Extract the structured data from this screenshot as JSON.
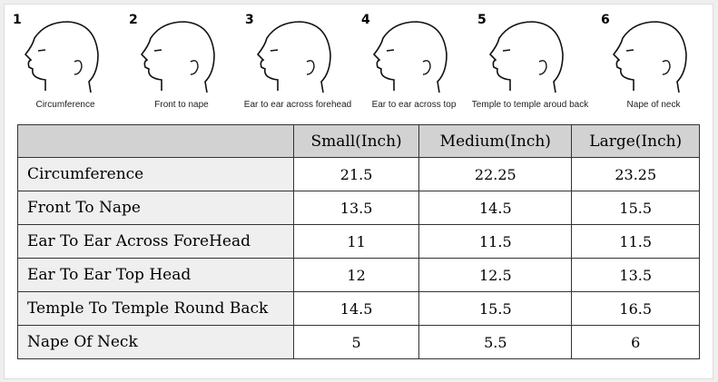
{
  "figures": [
    {
      "number": "1",
      "caption": "Circumference"
    },
    {
      "number": "2",
      "caption": "Front to nape"
    },
    {
      "number": "3",
      "caption": "Ear to ear across forehead"
    },
    {
      "number": "4",
      "caption": "Ear to ear across top"
    },
    {
      "number": "5",
      "caption": "Temple to temple aroud back"
    },
    {
      "number": "6",
      "caption": "Nape of neck"
    }
  ],
  "table": {
    "headers": [
      "",
      "Small(Inch)",
      "Medium(Inch)",
      "Large(Inch)"
    ],
    "rows": [
      [
        "Circumference",
        "21.5",
        "22.25",
        "23.25"
      ],
      [
        "Front To Nape",
        "13.5",
        "14.5",
        "15.5"
      ],
      [
        "Ear To Ear Across ForeHead",
        "11",
        "11.5",
        "11.5"
      ],
      [
        "Ear To Ear Top Head",
        "12",
        "12.5",
        "13.5"
      ],
      [
        "Temple To Temple Round Back",
        "14.5",
        "15.5",
        "16.5"
      ],
      [
        "Nape Of Neck",
        "5",
        "5.5",
        "6"
      ]
    ]
  }
}
